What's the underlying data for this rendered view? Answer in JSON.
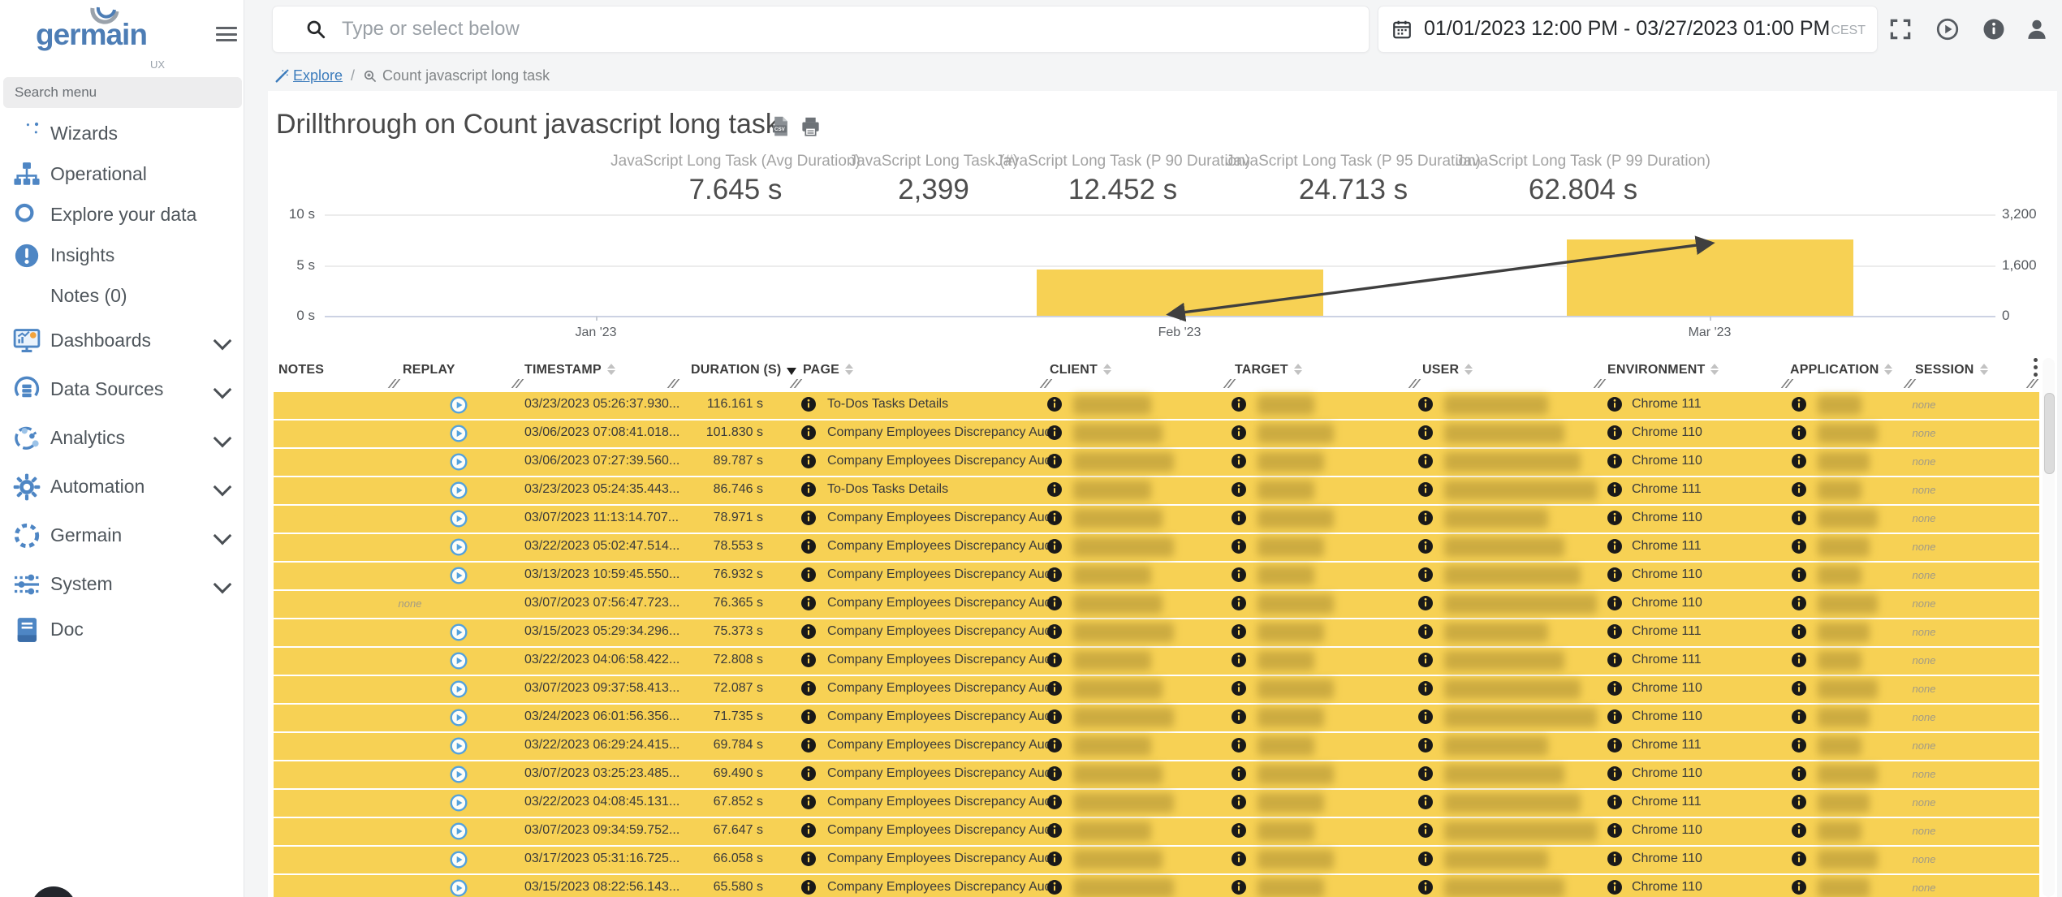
{
  "sidebar": {
    "logo_text": "germain",
    "logo_sub": "UX",
    "search_placeholder": "Search menu",
    "items": [
      {
        "label": "Wizards",
        "icon": "wand-icon",
        "expandable": false
      },
      {
        "label": "Operational",
        "icon": "sitemap-icon",
        "expandable": false
      },
      {
        "label": "Explore your data",
        "icon": "search-icon",
        "expandable": false
      },
      {
        "label": "Insights",
        "icon": "insights-icon",
        "expandable": false
      },
      {
        "label": "Notes (0)",
        "icon": "notes-icon",
        "expandable": false
      },
      {
        "label": "Dashboards",
        "icon": "dashboard-icon",
        "expandable": true
      },
      {
        "label": "Data Sources",
        "icon": "data-sources-icon",
        "expandable": true
      },
      {
        "label": "Analytics",
        "icon": "analytics-icon",
        "expandable": true
      },
      {
        "label": "Automation",
        "icon": "gear-icon",
        "expandable": true
      },
      {
        "label": "Germain",
        "icon": "dashed-circle-icon",
        "expandable": true
      },
      {
        "label": "System",
        "icon": "sliders-icon",
        "expandable": true
      },
      {
        "label": "Doc",
        "icon": "book-icon",
        "expandable": false
      }
    ]
  },
  "topbar": {
    "search_placeholder": "Type or select below",
    "date_range": "01/01/2023 12:00 PM - 03/27/2023 01:00 PM",
    "timezone": "CEST",
    "icons": [
      "fullscreen-icon",
      "replay-session-icon",
      "info-icon",
      "user-icon"
    ]
  },
  "breadcrumb": {
    "root": "Explore",
    "separator": "/",
    "current": "Count javascript long task"
  },
  "page": {
    "title": "Drillthrough on Count javascript long task",
    "actions": [
      "csv-export-icon",
      "print-icon"
    ]
  },
  "kpis": [
    {
      "label": "JavaScript Long Task (Avg Duration)",
      "value": "7.645 s"
    },
    {
      "label": "JavaScript Long Task (#)",
      "value": "2,399"
    },
    {
      "label": "JavaScript Long Task (P 90 Duration)",
      "value": "12.452 s"
    },
    {
      "label": "JavaScript Long Task (P 95 Duration)",
      "value": "24.713 s"
    },
    {
      "label": "JavaScript Long Task (P 99 Duration)",
      "value": "62.804 s"
    }
  ],
  "chart_data": {
    "type": "bar",
    "categories": [
      "Jan '23",
      "Feb '23",
      "Mar '23"
    ],
    "series": [
      {
        "name": "JavaScript Long Task (Avg Duration)",
        "type": "bar",
        "axis": "left",
        "color": "#f7d154",
        "values": [
          null,
          4.6,
          7.5
        ]
      },
      {
        "name": "JavaScript Long Task (#)",
        "type": "line",
        "axis": "right",
        "color": "#3f3f3f",
        "values": [
          null,
          90,
          2280
        ]
      }
    ],
    "left_axis": {
      "ticks": [
        "10 s",
        "5 s",
        "0 s"
      ],
      "lim": [
        0,
        10
      ]
    },
    "right_axis": {
      "ticks": [
        "3,200",
        "1,600",
        "0"
      ],
      "lim": [
        0,
        3200
      ]
    },
    "grid": true,
    "legend": false
  },
  "table": {
    "columns": [
      {
        "label": "NOTES",
        "sort": null
      },
      {
        "label": "REPLAY",
        "sort": null
      },
      {
        "label": "TIMESTAMP",
        "sort": "none"
      },
      {
        "label": "DURATION (S)",
        "sort": "desc"
      },
      {
        "label": "PAGE",
        "sort": "none"
      },
      {
        "label": "CLIENT",
        "sort": "none"
      },
      {
        "label": "TARGET",
        "sort": "none"
      },
      {
        "label": "USER",
        "sort": "none"
      },
      {
        "label": "ENVIRONMENT",
        "sort": "none"
      },
      {
        "label": "APPLICATION",
        "sort": "none"
      },
      {
        "label": "SESSION",
        "sort": "none"
      }
    ],
    "redacted_columns": [
      "CLIENT",
      "TARGET",
      "USER",
      "APPLICATION"
    ],
    "rows": [
      {
        "replay": "play",
        "timestamp": "03/23/2023 05:26:37.930...",
        "duration": "116.161 s",
        "page": "To-Dos Tasks Details",
        "environment": "Chrome 111",
        "session": "none"
      },
      {
        "replay": "play",
        "timestamp": "03/06/2023 07:08:41.018...",
        "duration": "101.830 s",
        "page": "Company Employees Discrepancy Audit",
        "environment": "Chrome 110",
        "session": "none"
      },
      {
        "replay": "play",
        "timestamp": "03/06/2023 07:27:39.560...",
        "duration": "89.787 s",
        "page": "Company Employees Discrepancy Audit",
        "environment": "Chrome 110",
        "session": "none"
      },
      {
        "replay": "play",
        "timestamp": "03/23/2023 05:24:35.443...",
        "duration": "86.746 s",
        "page": "To-Dos Tasks Details",
        "environment": "Chrome 111",
        "session": "none"
      },
      {
        "replay": "play",
        "timestamp": "03/07/2023 11:13:14.707...",
        "duration": "78.971 s",
        "page": "Company Employees Discrepancy Audit",
        "environment": "Chrome 110",
        "session": "none"
      },
      {
        "replay": "play",
        "timestamp": "03/22/2023 05:02:47.514...",
        "duration": "78.553 s",
        "page": "Company Employees Discrepancy Audit",
        "environment": "Chrome 111",
        "session": "none"
      },
      {
        "replay": "play",
        "timestamp": "03/13/2023 10:59:45.550...",
        "duration": "76.932 s",
        "page": "Company Employees Discrepancy Audit",
        "environment": "Chrome 110",
        "session": "none"
      },
      {
        "replay": "none",
        "timestamp": "03/07/2023 07:56:47.723...",
        "duration": "76.365 s",
        "page": "Company Employees Discrepancy Audit",
        "environment": "Chrome 110",
        "session": "none"
      },
      {
        "replay": "play",
        "timestamp": "03/15/2023 05:29:34.296...",
        "duration": "75.373 s",
        "page": "Company Employees Discrepancy Audit",
        "environment": "Chrome 111",
        "session": "none"
      },
      {
        "replay": "play",
        "timestamp": "03/22/2023 04:06:58.422...",
        "duration": "72.808 s",
        "page": "Company Employees Discrepancy Audit",
        "environment": "Chrome 111",
        "session": "none"
      },
      {
        "replay": "play",
        "timestamp": "03/07/2023 09:37:58.413...",
        "duration": "72.087 s",
        "page": "Company Employees Discrepancy Audit",
        "environment": "Chrome 110",
        "session": "none"
      },
      {
        "replay": "play",
        "timestamp": "03/24/2023 06:01:56.356...",
        "duration": "71.735 s",
        "page": "Company Employees Discrepancy Audit",
        "environment": "Chrome 110",
        "session": "none"
      },
      {
        "replay": "play",
        "timestamp": "03/22/2023 06:29:24.415...",
        "duration": "69.784 s",
        "page": "Company Employees Discrepancy Audit",
        "environment": "Chrome 111",
        "session": "none"
      },
      {
        "replay": "play",
        "timestamp": "03/07/2023 03:25:23.485...",
        "duration": "69.490 s",
        "page": "Company Employees Discrepancy Audit",
        "environment": "Chrome 110",
        "session": "none"
      },
      {
        "replay": "play",
        "timestamp": "03/22/2023 04:08:45.131...",
        "duration": "67.852 s",
        "page": "Company Employees Discrepancy Audit",
        "environment": "Chrome 111",
        "session": "none"
      },
      {
        "replay": "play",
        "timestamp": "03/07/2023 09:34:59.752...",
        "duration": "67.647 s",
        "page": "Company Employees Discrepancy Audit",
        "environment": "Chrome 110",
        "session": "none"
      },
      {
        "replay": "play",
        "timestamp": "03/17/2023 05:31:16.725...",
        "duration": "66.058 s",
        "page": "Company Employees Discrepancy Audit",
        "environment": "Chrome 110",
        "session": "none"
      },
      {
        "replay": "play",
        "timestamp": "03/15/2023 08:22:56.143...",
        "duration": "65.580 s",
        "page": "Company Employees Discrepancy Audit",
        "environment": "Chrome 110",
        "session": "none"
      }
    ]
  }
}
